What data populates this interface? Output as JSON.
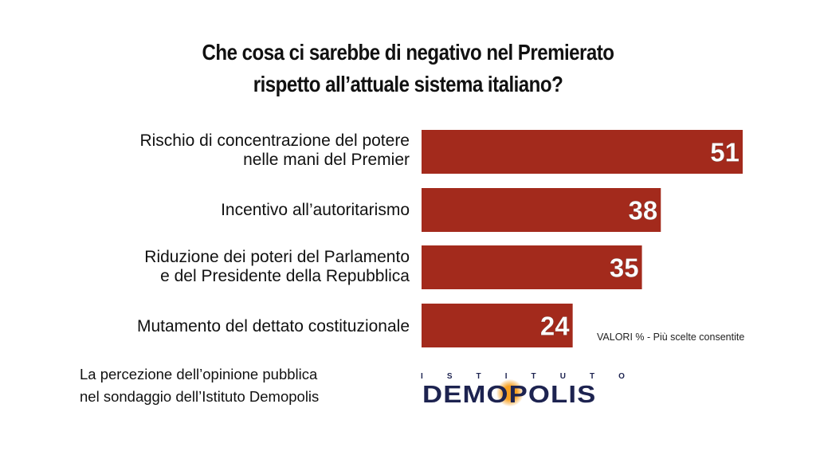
{
  "title": {
    "line1": "Che cosa ci sarebbe di negativo nel Premierato",
    "line2": "rispetto all’attuale sistema italiano?"
  },
  "labels": [
    {
      "line1": "Rischio di concentrazione del potere",
      "line2": "nelle mani del Premier"
    },
    {
      "line1": "Incentivo all’autoritarismo",
      "line2": ""
    },
    {
      "line1": "Riduzione dei poteri del Parlamento",
      "line2": "e del Presidente della Repubblica"
    },
    {
      "line1": "Mutamento del dettato costituzionale",
      "line2": ""
    }
  ],
  "note": "VALORI % - Più scelte consentite",
  "source": {
    "line1": "La percezione dell’opinione pubblica",
    "line2": "nel sondaggio dell’Istituto Demopolis"
  },
  "logo": {
    "top_letters": [
      "I",
      "S",
      "T",
      "I",
      "T",
      "U",
      "T",
      "O"
    ],
    "name": "DEMOPOLIS"
  },
  "colors": {
    "bar": "#a32a1c",
    "logo": "#1d2350",
    "logo_accent": "#f7a021"
  },
  "chart_data": {
    "type": "bar",
    "orientation": "horizontal",
    "categories": [
      "Rischio di concentrazione del potere nelle mani del Premier",
      "Incentivo all’autoritarismo",
      "Riduzione dei poteri del Parlamento e del Presidente della Repubblica",
      "Mutamento del dettato costituzionale"
    ],
    "values": [
      51,
      38,
      35,
      24
    ],
    "title": "Che cosa ci sarebbe di negativo nel Premierato rispetto all’attuale sistema italiano?",
    "xlim": [
      0,
      51
    ],
    "grid": false
  }
}
